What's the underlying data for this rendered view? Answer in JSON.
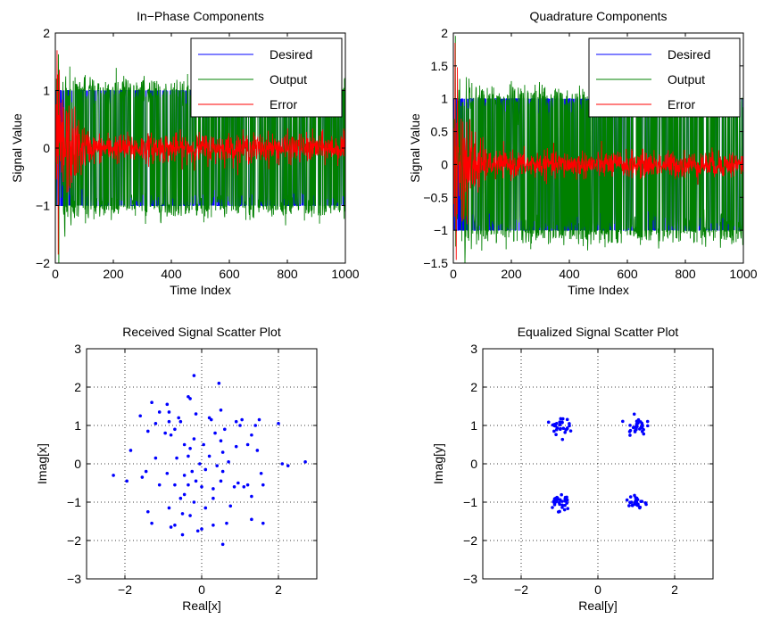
{
  "chart_data": [
    {
      "type": "line",
      "title": "In−Phase Components",
      "xlabel": "Time Index",
      "ylabel": "Signal Value",
      "xlim": [
        0,
        1000
      ],
      "ylim": [
        -2,
        2
      ],
      "xticks": [
        "0",
        "200",
        "400",
        "600",
        "800",
        "1000"
      ],
      "yticks": [
        "−2",
        "−1",
        "0",
        "1",
        "2"
      ],
      "xtick_values": [
        0,
        200,
        400,
        600,
        800,
        1000
      ],
      "ytick_values": [
        -2,
        -1,
        0,
        1,
        2
      ],
      "grid": false,
      "legend_position": "top-right",
      "series": [
        {
          "name": "Desired",
          "color": "#0000ff",
          "description_values": {
            "levels": [
              -1,
              1
            ],
            "length": 1000
          }
        },
        {
          "name": "Output",
          "color": "#008000",
          "description_values": {
            "levels": [
              -1,
              1
            ],
            "spread": 0.2,
            "initial_spread": 0.7,
            "length": 1000
          }
        },
        {
          "name": "Error",
          "color": "#ff0000",
          "description_values": {
            "center": 0,
            "initial_peak": 1.7,
            "initial_min": -1.85,
            "steady_spread": 0.25,
            "length": 1000
          }
        }
      ]
    },
    {
      "type": "line",
      "title": "Quadrature Components",
      "xlabel": "Time Index",
      "ylabel": "Signal Value",
      "xlim": [
        0,
        1000
      ],
      "ylim": [
        -1.5,
        2
      ],
      "xticks": [
        "0",
        "200",
        "400",
        "600",
        "800",
        "1000"
      ],
      "yticks": [
        "−1.5",
        "−1",
        "−0.5",
        "0",
        "0.5",
        "1",
        "1.5",
        "2"
      ],
      "xtick_values": [
        0,
        200,
        400,
        600,
        800,
        1000
      ],
      "ytick_values": [
        -1.5,
        -1,
        -0.5,
        0,
        0.5,
        1,
        1.5,
        2
      ],
      "grid": false,
      "legend_position": "top-right",
      "series": [
        {
          "name": "Desired",
          "color": "#0000ff",
          "description_values": {
            "levels": [
              -1,
              1
            ],
            "length": 1000
          }
        },
        {
          "name": "Output",
          "color": "#008000",
          "description_values": {
            "levels": [
              -1,
              1
            ],
            "spread": 0.2,
            "initial_spread": 0.7,
            "length": 1000
          }
        },
        {
          "name": "Error",
          "color": "#ff0000",
          "description_values": {
            "center": 0,
            "initial_peak": 1.85,
            "initial_min": -1.45,
            "steady_spread": 0.2,
            "length": 1000
          }
        }
      ]
    },
    {
      "type": "scatter",
      "title": "Received Signal Scatter Plot",
      "xlabel": "Real[x]",
      "ylabel": "Imag[x]",
      "xlim": [
        -3,
        3
      ],
      "ylim": [
        -3,
        3
      ],
      "xticks": [
        "−2",
        "0",
        "2"
      ],
      "yticks": [
        "−3",
        "−2",
        "−1",
        "0",
        "1",
        "2",
        "3"
      ],
      "xtick_values": [
        -2,
        0,
        2
      ],
      "ytick_values": [
        -3,
        -2,
        -1,
        0,
        1,
        2,
        3
      ],
      "grid": true,
      "color": "#0000ff",
      "points": [
        [
          -0.2,
          2.3
        ],
        [
          0.45,
          2.1
        ],
        [
          -0.35,
          1.75
        ],
        [
          -0.3,
          1.7
        ],
        [
          -1.3,
          1.6
        ],
        [
          -0.9,
          1.55
        ],
        [
          -1.1,
          1.35
        ],
        [
          -0.85,
          1.35
        ],
        [
          0.5,
          1.4
        ],
        [
          -0.15,
          1.3
        ],
        [
          -1.6,
          1.25
        ],
        [
          0.2,
          1.2
        ],
        [
          -0.6,
          1.2
        ],
        [
          0.25,
          1.15
        ],
        [
          1.05,
          1.15
        ],
        [
          1.5,
          1.15
        ],
        [
          2.0,
          1.05
        ],
        [
          -1.2,
          1.05
        ],
        [
          -0.85,
          1.1
        ],
        [
          -0.55,
          1.1
        ],
        [
          0.9,
          1.1
        ],
        [
          1.0,
          1.0
        ],
        [
          1.4,
          1.0
        ],
        [
          -0.7,
          0.9
        ],
        [
          0.6,
          0.9
        ],
        [
          -1.4,
          0.85
        ],
        [
          -0.95,
          0.8
        ],
        [
          0.35,
          0.8
        ],
        [
          1.3,
          0.75
        ],
        [
          -0.8,
          0.75
        ],
        [
          -0.2,
          0.65
        ],
        [
          0.5,
          0.6
        ],
        [
          -0.45,
          0.5
        ],
        [
          0.05,
          0.5
        ],
        [
          1.2,
          0.5
        ],
        [
          0.9,
          0.45
        ],
        [
          -1.85,
          0.35
        ],
        [
          -0.3,
          0.4
        ],
        [
          0.55,
          0.3
        ],
        [
          1.45,
          0.35
        ],
        [
          -1.2,
          0.15
        ],
        [
          -0.65,
          0.15
        ],
        [
          -0.35,
          0.2
        ],
        [
          0.2,
          0.2
        ],
        [
          0.7,
          0.05
        ],
        [
          2.1,
          0.0
        ],
        [
          2.7,
          0.05
        ],
        [
          -0.05,
          0.0
        ],
        [
          0.4,
          -0.05
        ],
        [
          2.25,
          -0.05
        ],
        [
          -1.45,
          -0.2
        ],
        [
          -0.9,
          -0.25
        ],
        [
          -0.25,
          -0.2
        ],
        [
          0.1,
          -0.15
        ],
        [
          0.55,
          -0.2
        ],
        [
          1.55,
          -0.25
        ],
        [
          -2.3,
          -0.3
        ],
        [
          -1.55,
          -0.35
        ],
        [
          -0.45,
          -0.3
        ],
        [
          -0.15,
          -0.45
        ],
        [
          0.5,
          -0.45
        ],
        [
          0.95,
          -0.5
        ],
        [
          1.2,
          -0.55
        ],
        [
          1.6,
          -0.55
        ],
        [
          -1.95,
          -0.45
        ],
        [
          -0.35,
          -0.55
        ],
        [
          0.0,
          -0.6
        ],
        [
          0.85,
          -0.6
        ],
        [
          1.1,
          -0.6
        ],
        [
          -1.1,
          -0.55
        ],
        [
          -0.7,
          -0.55
        ],
        [
          0.3,
          -0.65
        ],
        [
          -0.45,
          -0.8
        ],
        [
          1.3,
          -0.85
        ],
        [
          -0.55,
          -0.9
        ],
        [
          0.3,
          -0.9
        ],
        [
          -0.2,
          -1.0
        ],
        [
          0.75,
          -1.1
        ],
        [
          -0.85,
          -1.15
        ],
        [
          0.1,
          -1.15
        ],
        [
          -1.4,
          -1.25
        ],
        [
          -0.5,
          -1.3
        ],
        [
          -0.3,
          -1.35
        ],
        [
          1.3,
          -1.45
        ],
        [
          -1.3,
          -1.55
        ],
        [
          0.65,
          -1.55
        ],
        [
          0.3,
          -1.6
        ],
        [
          1.6,
          -1.55
        ],
        [
          -0.8,
          -1.65
        ],
        [
          -0.7,
          -1.6
        ],
        [
          0.0,
          -1.7
        ],
        [
          -0.5,
          -1.85
        ],
        [
          -0.1,
          -1.75
        ],
        [
          0.55,
          -2.1
        ]
      ]
    },
    {
      "type": "scatter",
      "title": "Equalized Signal Scatter Plot",
      "xlabel": "Real[y]",
      "ylabel": "Imag[y]",
      "xlim": [
        -3,
        3
      ],
      "ylim": [
        -3,
        3
      ],
      "xticks": [
        "−2",
        "0",
        "2"
      ],
      "yticks": [
        "−3",
        "−2",
        "−1",
        "0",
        "1",
        "2",
        "3"
      ],
      "xtick_values": [
        -2,
        0,
        2
      ],
      "ytick_values": [
        -3,
        -2,
        -1,
        0,
        1,
        2,
        3
      ],
      "grid": true,
      "color": "#0000ff",
      "clusters": [
        {
          "center": [
            -1,
            1
          ],
          "spread": 0.12,
          "count": 30
        },
        {
          "center": [
            1,
            1
          ],
          "spread": 0.12,
          "count": 30
        },
        {
          "center": [
            -1,
            -1
          ],
          "spread": 0.13,
          "count": 32
        },
        {
          "center": [
            1,
            -1
          ],
          "spread": 0.1,
          "count": 30
        }
      ]
    }
  ]
}
